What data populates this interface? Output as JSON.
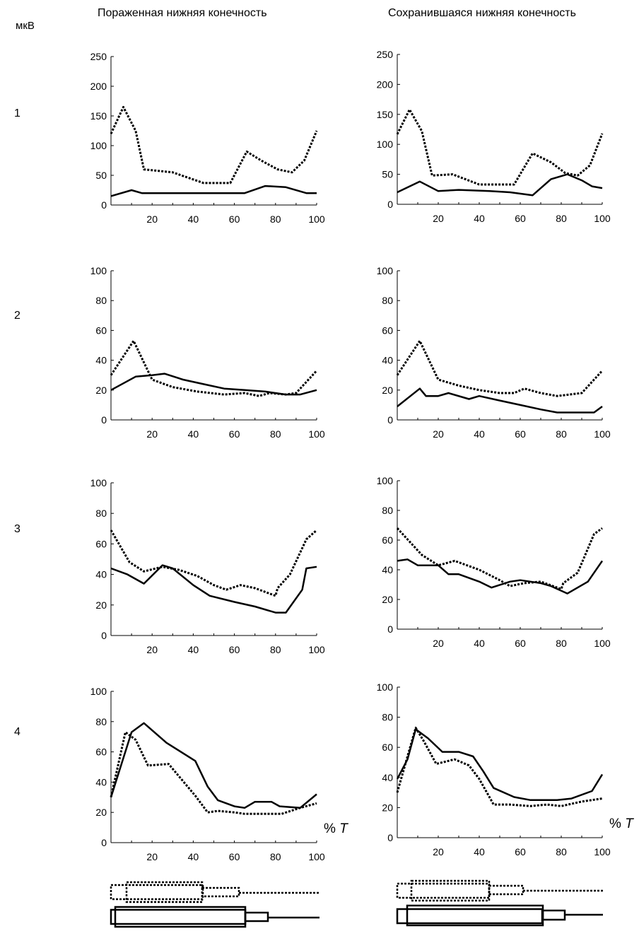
{
  "header": {
    "unit": "мкВ",
    "col_left": "Пораженная нижняя конечность",
    "col_right": "Сохранившаяся нижняя конечность",
    "x_axis_label_prefix": "% ",
    "x_axis_label_var": "T"
  },
  "rows": [
    "1",
    "2",
    "3",
    "4"
  ],
  "chart_data": [
    {
      "type": "line",
      "row": "1",
      "column": "Пораженная нижняя конечность",
      "ylim": [
        0,
        250
      ],
      "yticks": [
        0,
        50,
        100,
        150,
        200,
        250
      ],
      "xticks": [
        20,
        40,
        60,
        80,
        100
      ],
      "xlim": [
        0,
        100
      ],
      "series": [
        {
          "name": "solid",
          "style": "solid",
          "x": [
            0,
            10,
            15,
            40,
            65,
            75,
            85,
            95,
            100
          ],
          "y": [
            15,
            25,
            20,
            20,
            20,
            32,
            30,
            20,
            20
          ]
        },
        {
          "name": "dotted",
          "style": "dotted",
          "x": [
            0,
            6,
            12,
            16,
            30,
            45,
            55,
            58,
            66,
            73,
            81,
            88,
            94,
            100
          ],
          "y": [
            120,
            165,
            125,
            60,
            55,
            37,
            37,
            37,
            90,
            75,
            60,
            55,
            75,
            125
          ]
        }
      ]
    },
    {
      "type": "line",
      "row": "1",
      "column": "Сохранившаяся нижняя конечность",
      "ylim": [
        0,
        250
      ],
      "yticks": [
        0,
        50,
        100,
        150,
        200,
        250
      ],
      "xticks": [
        20,
        40,
        60,
        80,
        100
      ],
      "xlim": [
        0,
        100
      ],
      "series": [
        {
          "name": "solid",
          "style": "solid",
          "x": [
            0,
            11,
            20,
            30,
            45,
            55,
            66,
            75,
            83,
            90,
            95,
            100
          ],
          "y": [
            20,
            38,
            22,
            24,
            22,
            20,
            15,
            42,
            50,
            40,
            30,
            27
          ]
        },
        {
          "name": "dotted",
          "style": "dotted",
          "x": [
            0,
            6,
            12,
            17,
            27,
            40,
            50,
            57,
            66,
            75,
            82,
            88,
            94,
            100
          ],
          "y": [
            117,
            158,
            122,
            48,
            50,
            33,
            33,
            33,
            85,
            70,
            52,
            48,
            65,
            118
          ]
        }
      ]
    },
    {
      "type": "line",
      "row": "2",
      "column": "Пораженная нижняя конечность",
      "ylim": [
        0,
        100
      ],
      "yticks": [
        0,
        20,
        40,
        60,
        80,
        100
      ],
      "xticks": [
        20,
        40,
        60,
        80,
        100
      ],
      "xlim": [
        0,
        100
      ],
      "series": [
        {
          "name": "solid",
          "style": "solid",
          "x": [
            0,
            12,
            20,
            26,
            35,
            45,
            55,
            65,
            75,
            85,
            92,
            100
          ],
          "y": [
            20,
            29,
            30,
            31,
            27,
            24,
            21,
            20,
            19,
            17,
            17,
            20
          ]
        },
        {
          "name": "dotted",
          "style": "dotted",
          "x": [
            0,
            11,
            20,
            30,
            42,
            55,
            65,
            72,
            77,
            85,
            90,
            100
          ],
          "y": [
            30,
            53,
            27,
            22,
            19,
            17,
            18,
            16,
            18,
            17,
            18,
            33
          ]
        }
      ]
    },
    {
      "type": "line",
      "row": "2",
      "column": "Сохранившаяся нижняя конечность",
      "ylim": [
        0,
        100
      ],
      "yticks": [
        0,
        20,
        40,
        60,
        80,
        100
      ],
      "xticks": [
        20,
        40,
        60,
        80,
        100
      ],
      "xlim": [
        0,
        100
      ],
      "series": [
        {
          "name": "solid",
          "style": "solid",
          "x": [
            0,
            11,
            14,
            20,
            25,
            35,
            40,
            50,
            60,
            70,
            78,
            88,
            96,
            100
          ],
          "y": [
            9,
            21,
            16,
            16,
            18,
            14,
            16,
            13,
            10,
            7,
            5,
            5,
            5,
            9
          ]
        },
        {
          "name": "dotted",
          "style": "dotted",
          "x": [
            0,
            11,
            20,
            30,
            40,
            50,
            57,
            62,
            70,
            78,
            90,
            100
          ],
          "y": [
            30,
            53,
            27,
            23,
            20,
            18,
            18,
            21,
            18,
            16,
            18,
            33
          ]
        }
      ]
    },
    {
      "type": "line",
      "row": "3",
      "column": "Пораженная нижняя конечность",
      "ylim": [
        0,
        100
      ],
      "yticks": [
        0,
        20,
        40,
        60,
        80,
        100
      ],
      "xticks": [
        20,
        40,
        60,
        80,
        100
      ],
      "xlim": [
        0,
        100
      ],
      "series": [
        {
          "name": "solid",
          "style": "solid",
          "x": [
            0,
            8,
            16,
            25,
            30,
            40,
            48,
            60,
            70,
            80,
            85,
            93,
            95,
            100
          ],
          "y": [
            44,
            40,
            34,
            46,
            44,
            33,
            26,
            22,
            19,
            15,
            15,
            30,
            44,
            45
          ]
        },
        {
          "name": "dotted",
          "style": "dotted",
          "x": [
            0,
            9,
            16,
            25,
            33,
            42,
            50,
            56,
            63,
            70,
            80,
            81,
            87,
            95,
            100
          ],
          "y": [
            69,
            48,
            42,
            45,
            43,
            39,
            33,
            30,
            33,
            31,
            26,
            31,
            40,
            63,
            69
          ]
        }
      ]
    },
    {
      "type": "line",
      "row": "3",
      "column": "Сохранившаяся нижняя конечность",
      "ylim": [
        0,
        100
      ],
      "yticks": [
        0,
        20,
        40,
        60,
        80,
        100
      ],
      "xticks": [
        20,
        40,
        60,
        80,
        100
      ],
      "xlim": [
        0,
        100
      ],
      "series": [
        {
          "name": "solid",
          "style": "solid",
          "x": [
            0,
            5,
            10,
            20,
            25,
            30,
            40,
            46,
            55,
            60,
            65,
            70,
            75,
            83,
            93,
            100
          ],
          "y": [
            46,
            47,
            43,
            43,
            37,
            37,
            32,
            28,
            32,
            33,
            32,
            31,
            29,
            24,
            32,
            46
          ]
        },
        {
          "name": "dotted",
          "style": "dotted",
          "x": [
            0,
            12,
            20,
            28,
            40,
            50,
            55,
            62,
            70,
            80,
            81,
            88,
            96,
            100
          ],
          "y": [
            68,
            50,
            43,
            46,
            40,
            33,
            29,
            31,
            32,
            27,
            31,
            38,
            64,
            68
          ]
        }
      ]
    },
    {
      "type": "line",
      "row": "4",
      "column": "Пораженная нижняя конечность",
      "ylim": [
        0,
        100
      ],
      "yticks": [
        0,
        20,
        40,
        60,
        80,
        100
      ],
      "xticks": [
        20,
        40,
        60,
        80,
        100
      ],
      "xlim": [
        0,
        100
      ],
      "series": [
        {
          "name": "solid",
          "style": "solid",
          "x": [
            0,
            10,
            16,
            27,
            41,
            47,
            52,
            60,
            65,
            70,
            78,
            82,
            92,
            100
          ],
          "y": [
            30,
            73,
            79,
            66,
            54,
            37,
            28,
            24,
            23,
            27,
            27,
            24,
            23,
            32
          ]
        },
        {
          "name": "dotted",
          "style": "dotted",
          "x": [
            0,
            7,
            12,
            18,
            28,
            41,
            47,
            52,
            60,
            65,
            75,
            83,
            92,
            100
          ],
          "y": [
            30,
            73,
            68,
            51,
            52,
            31,
            20,
            21,
            20,
            19,
            19,
            19,
            23,
            26
          ]
        }
      ]
    },
    {
      "type": "line",
      "row": "4",
      "column": "Сохранившаяся нижняя конечность",
      "ylim": [
        0,
        100
      ],
      "yticks": [
        0,
        20,
        40,
        60,
        80,
        100
      ],
      "xticks": [
        20,
        40,
        60,
        80,
        100
      ],
      "xlim": [
        0,
        100
      ],
      "series": [
        {
          "name": "solid",
          "style": "solid",
          "x": [
            0,
            5,
            9,
            15,
            22,
            30,
            37,
            42,
            47,
            57,
            65,
            70,
            78,
            85,
            95,
            100
          ],
          "y": [
            39,
            52,
            72,
            66,
            57,
            57,
            54,
            44,
            33,
            27,
            25,
            25,
            25,
            26,
            31,
            42
          ]
        },
        {
          "name": "dotted",
          "style": "dotted",
          "x": [
            0,
            5,
            9,
            13,
            19,
            28,
            35,
            40,
            47,
            55,
            65,
            73,
            80,
            90,
            100
          ],
          "y": [
            30,
            54,
            73,
            64,
            49,
            52,
            48,
            39,
            22,
            22,
            21,
            22,
            21,
            24,
            26
          ]
        }
      ]
    }
  ],
  "bar_diagram_labels": []
}
